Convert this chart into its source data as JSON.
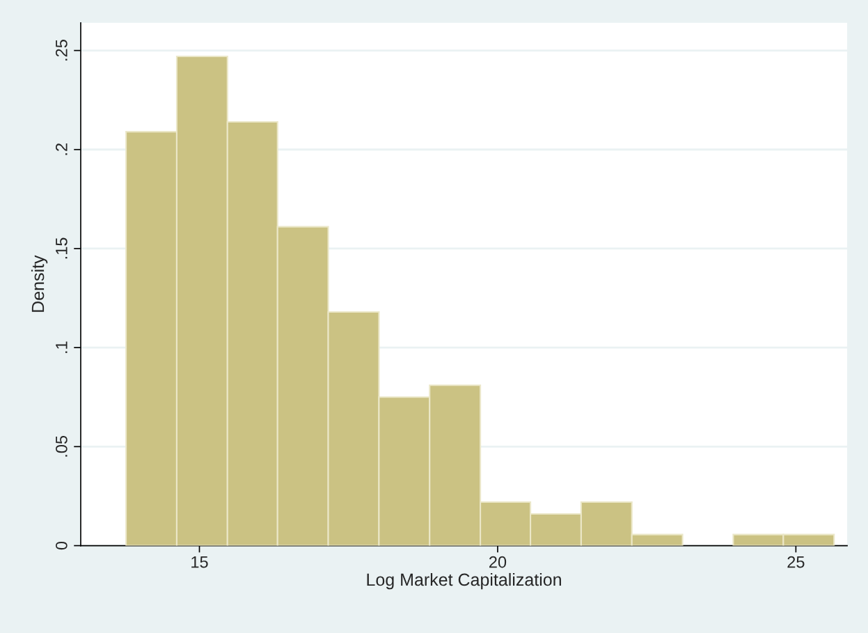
{
  "chart_data": {
    "type": "histogram",
    "xlabel": "Log Market Capitalization",
    "ylabel": "Density",
    "bins": [
      13.77,
      14.62,
      15.47,
      16.31,
      17.16,
      18.01,
      18.86,
      19.71,
      20.55,
      21.4,
      22.25,
      23.1,
      23.95,
      24.79,
      25.64
    ],
    "values": [
      0.209,
      0.247,
      0.214,
      0.161,
      0.118,
      0.075,
      0.081,
      0.022,
      0.016,
      0.022,
      0.0056,
      0,
      0.0056,
      0.0056
    ],
    "color": "#cbc283",
    "xlim": [
      13.01,
      25.86
    ],
    "ylim": [
      0,
      0.264
    ],
    "xticks": [
      15,
      20,
      25
    ],
    "yticks": [
      {
        "value": 0,
        "label": "0"
      },
      {
        "value": 0.05,
        "label": ".05"
      },
      {
        "value": 0.1,
        "label": ".1"
      },
      {
        "value": 0.15,
        "label": ".15"
      },
      {
        "value": 0.2,
        "label": ".2"
      },
      {
        "value": 0.25,
        "label": ".25"
      }
    ],
    "grid": "y"
  }
}
